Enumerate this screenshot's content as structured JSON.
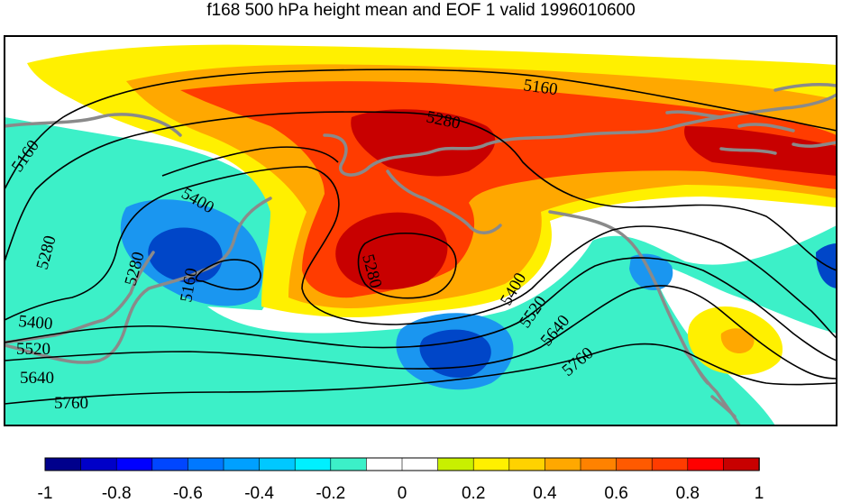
{
  "title": "f168 500 hPa height mean and EOF 1 valid 1996010600",
  "colors": {
    "neg_strong": "#0046c8",
    "neg_mid": "#1a96f0",
    "neg_weak": "#3cf0c8",
    "pos_weak": "#fff000",
    "pos_light": "#ffa800",
    "pos_mid": "#ff3c00",
    "pos_strong": "#c80000",
    "coastline": "#8a8a8a",
    "contour": "#000000"
  },
  "contours": {
    "labels": [
      "5160",
      "5280",
      "5400",
      "5520",
      "5640",
      "5760"
    ]
  },
  "colorbar": {
    "colors": [
      "#00008c",
      "#0000c8",
      "#0000ff",
      "#0046ff",
      "#0078ff",
      "#00a0ff",
      "#00c8ff",
      "#00f0ff",
      "#3cf0c8",
      "#ffffff",
      "#ffffff",
      "#c8f000",
      "#fff000",
      "#ffd200",
      "#ffa800",
      "#ff8200",
      "#ff5a00",
      "#ff3c00",
      "#ff0000",
      "#c80000"
    ],
    "tick_labels": [
      "-1",
      "-0.8",
      "-0.6",
      "-0.4",
      "-0.2",
      "0",
      "0.2",
      "0.4",
      "0.6",
      "0.8",
      "1"
    ]
  }
}
